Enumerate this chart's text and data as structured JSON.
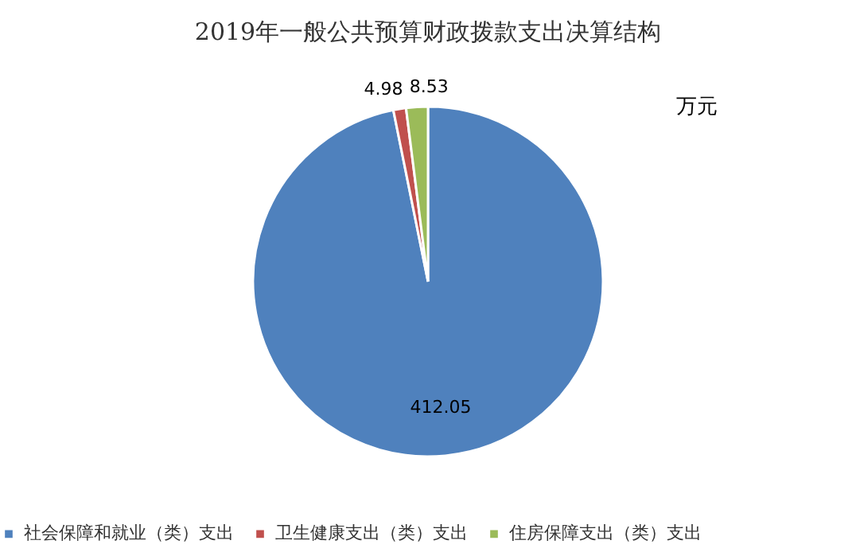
{
  "chart_data": {
    "type": "pie",
    "title": "2019年一般公共预算财政拨款支出决算结构",
    "categories": [
      "社会保障和就业（类）支出",
      "卫生健康支出（类）支出",
      "住房保障支出（类）支出"
    ],
    "values": [
      412.05,
      4.98,
      8.53
    ],
    "colors": [
      "#4f81bd",
      "#c0504d",
      "#9bbb59"
    ],
    "data_labels": true,
    "legend": "bottom",
    "annotations": [
      "万元"
    ]
  }
}
